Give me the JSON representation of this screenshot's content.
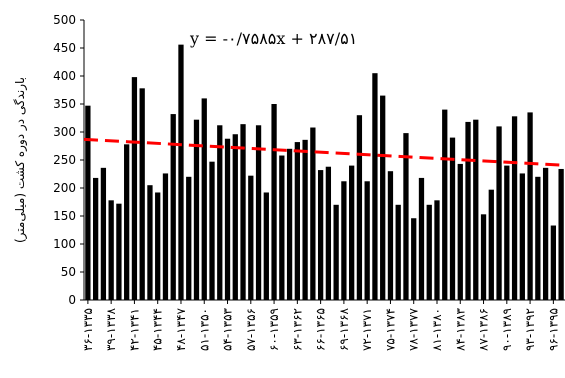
{
  "chart_data": {
    "type": "bar",
    "ylabel": "بارندگی در دوره کشت (میلی‌متر)",
    "yticks": [
      0,
      50,
      100,
      150,
      200,
      250,
      300,
      350,
      400,
      450,
      500
    ],
    "ylim": [
      0,
      500
    ],
    "grid": false,
    "values": [
      347,
      218,
      236,
      178,
      172,
      278,
      398,
      378,
      205,
      192,
      226,
      332,
      456,
      220,
      322,
      360,
      247,
      312,
      288,
      296,
      314,
      222,
      312,
      192,
      350,
      258,
      270,
      282,
      286,
      308,
      232,
      238,
      170,
      212,
      240,
      330,
      212,
      405,
      365,
      230,
      170,
      298,
      146,
      218,
      170,
      178,
      340,
      290,
      243,
      318,
      322,
      153,
      197,
      310,
      240,
      328,
      226,
      335,
      220,
      236,
      133,
      234
    ],
    "xtick_labels": [
      "۳۶-۱۳۳۵",
      "۳۹-۱۳۳۸",
      "۴۲-۱۳۴۱",
      "۴۵-۱۳۴۴",
      "۴۸-۱۳۴۷",
      "۵۱-۱۳۵۰",
      "۵۴-۱۳۵۳",
      "۵۷-۱۳۵۶",
      "۶۰-۱۳۵۹",
      "۶۳-۱۳۶۲",
      "۶۶-۱۳۶۵",
      "۶۹-۱۳۶۸",
      "۷۲-۱۳۷۱",
      "۷۵-۱۳۷۴",
      "۷۸-۱۳۷۷",
      "۸۱-۱۳۸۰",
      "۸۴-۱۳۸۳",
      "۸۷-۱۳۸۶",
      "۹۰-۱۳۸۹",
      "۹۳-۱۳۹۲",
      "۹۶-۱۳۹۵"
    ],
    "trendline": {
      "equation": "y = -۰/۷۵۸۵x + ۲۸۷/۵۱",
      "slope": -0.7585,
      "intercept": 287.51,
      "color": "#ff0000",
      "style": "dashed"
    },
    "bar_color": "#000000"
  }
}
